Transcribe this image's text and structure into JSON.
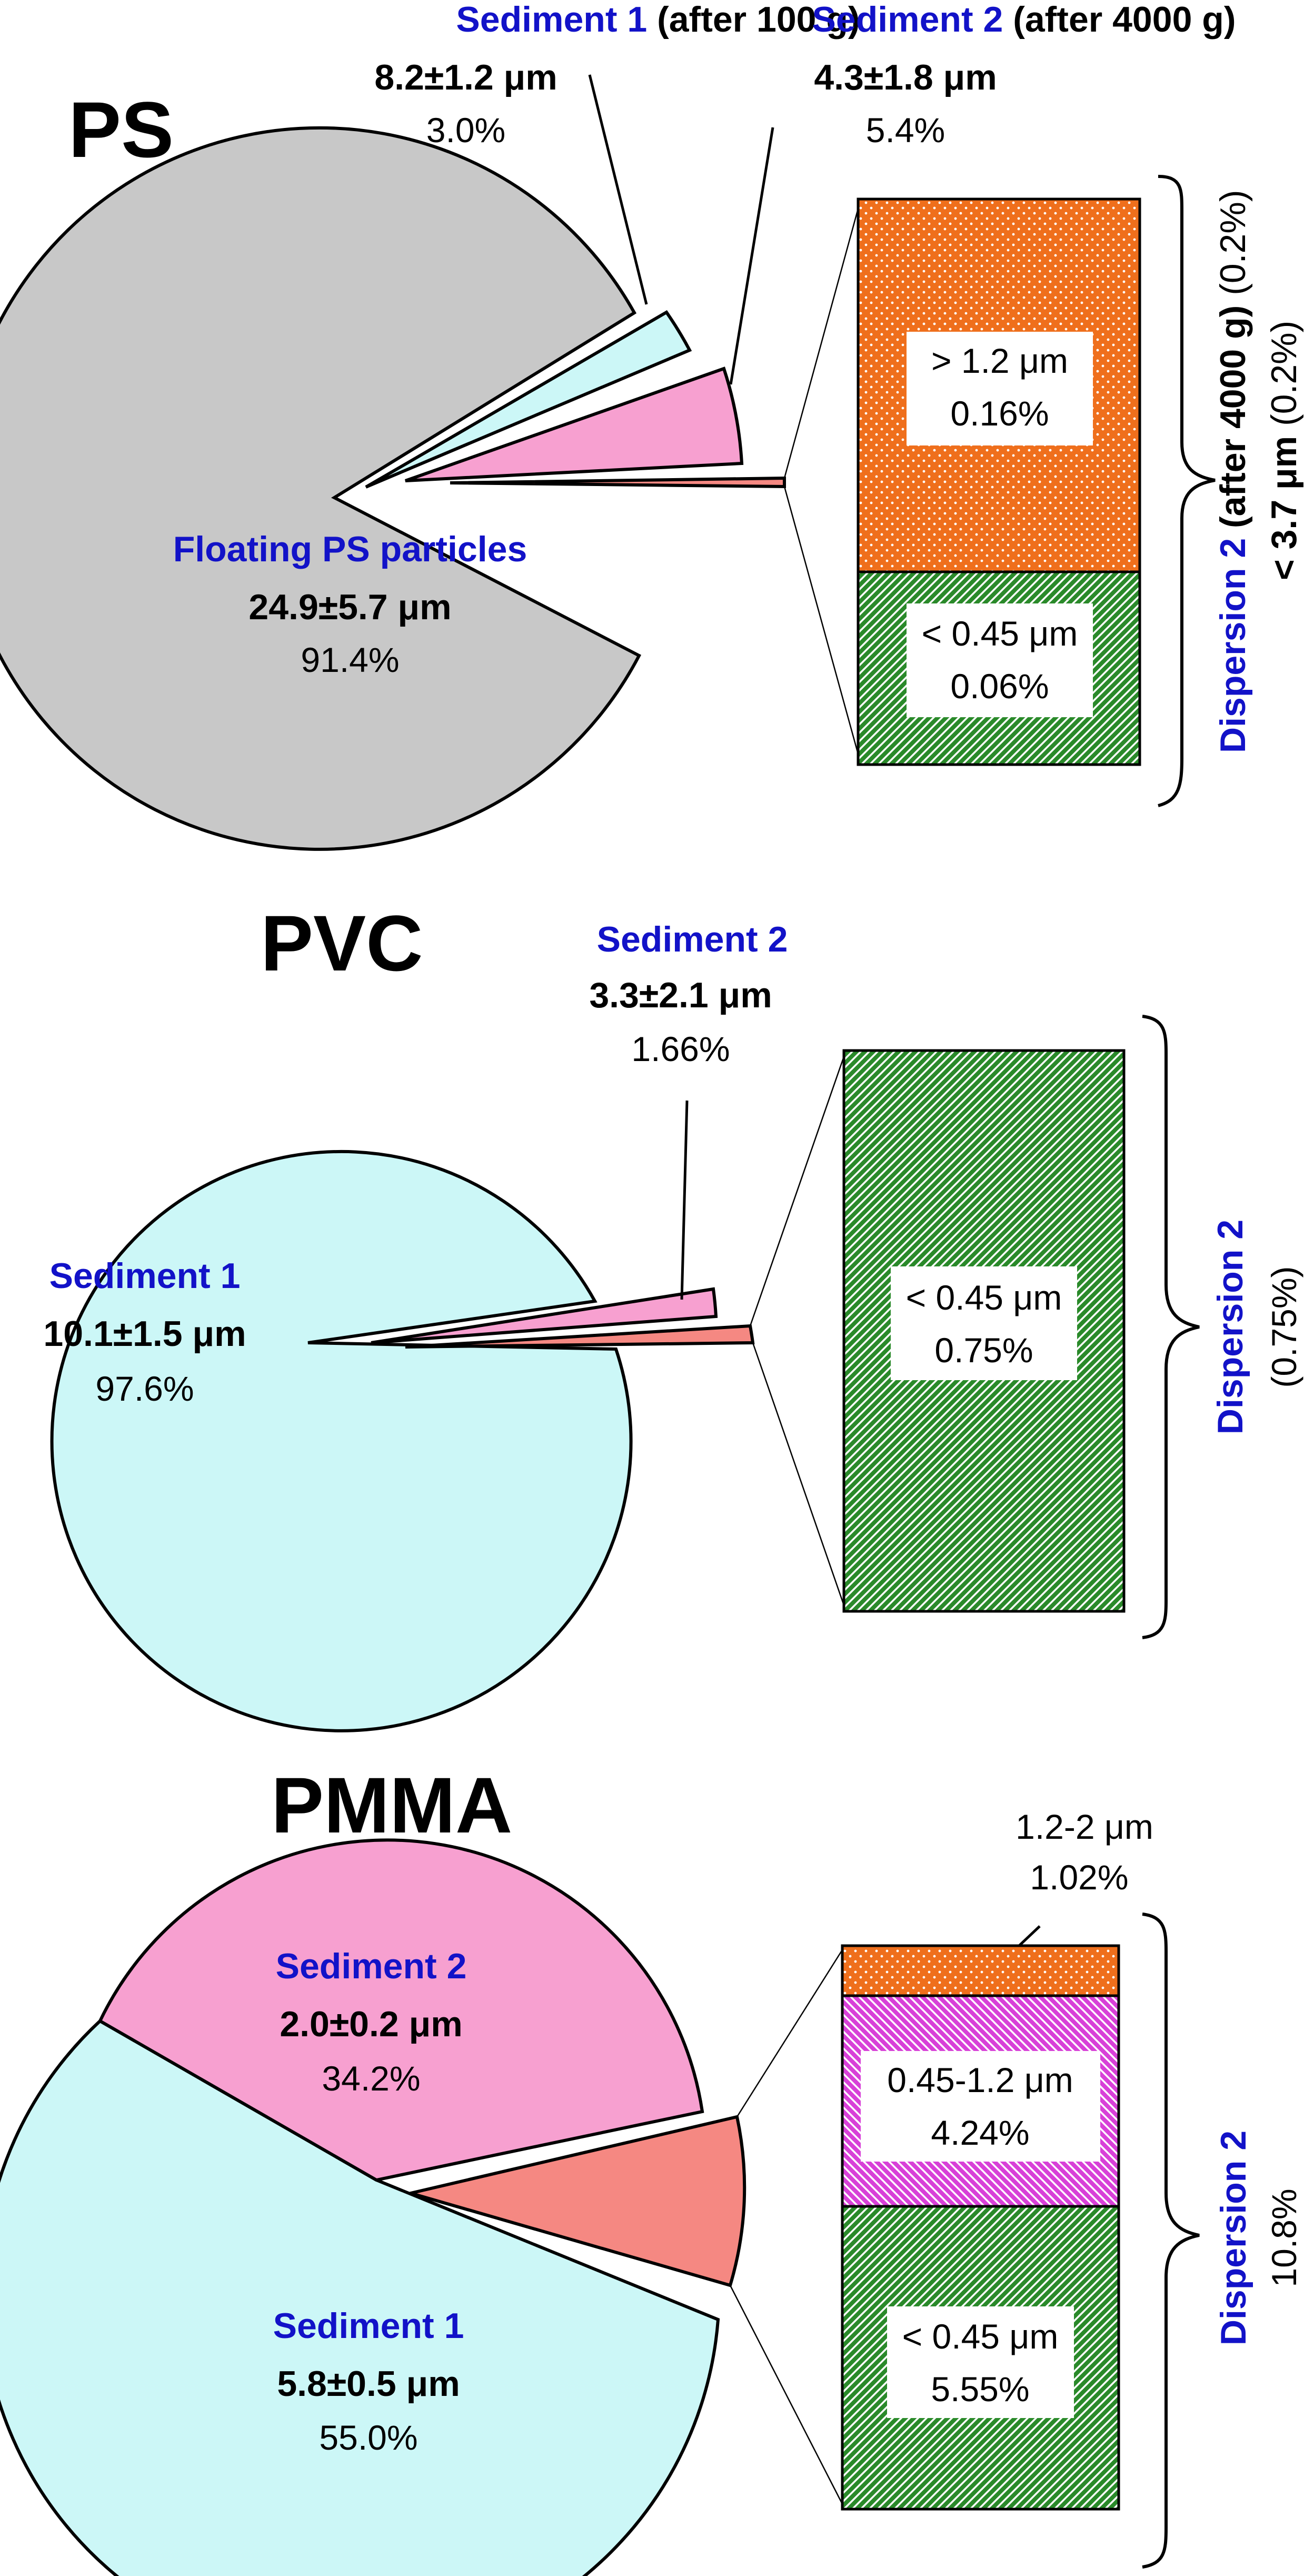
{
  "colors": {
    "floating_gray": "#c8c8c8",
    "sediment1_cyan": "#ccf7f7",
    "sediment2_pink": "#f7a0d0",
    "dispersion_salmon": "#f58882",
    "orange": "#ef6f1c",
    "green": "#2a8a2a",
    "magenta": "#d840d8",
    "label_blue": "#1212c8"
  },
  "panels": {
    "ps": {
      "heading": "PS",
      "floating": {
        "name": "Floating PS particles",
        "size": "24.9±5.7 μm",
        "pct": "91.4%"
      },
      "sed1": {
        "name": "Sediment 1",
        "note": " (after 100 g)",
        "size": "8.2±1.2 μm",
        "pct": "3.0%"
      },
      "sed2": {
        "name": "Sediment 2",
        "note": " (after 4000 g)",
        "size": "4.3±1.8 μm",
        "pct": "5.4%"
      },
      "bar": [
        {
          "label": "> 1.2 μm",
          "pct": "0.16%"
        },
        {
          "label": "< 0.45 μm",
          "pct": "0.06%"
        }
      ],
      "side_a": "Dispersion 2",
      "side_b": " (after 4000 g)",
      "side_c": " (0.2%)",
      "side_d": "< 3.7 μm",
      "side_e": " (0.2%)"
    },
    "pvc": {
      "heading": "PVC",
      "sed1": {
        "name": "Sediment 1",
        "size": "10.1±1.5 μm",
        "pct": "97.6%"
      },
      "sed2": {
        "name": "Sediment 2",
        "size": "3.3±2.1 μm",
        "pct": "1.66%"
      },
      "bar": [
        {
          "label": "< 0.45 μm",
          "pct": "0.75%"
        }
      ],
      "side_a": "Dispersion 2",
      "side_b": "(0.75%)"
    },
    "pmma": {
      "heading": "PMMA",
      "sed1": {
        "name": "Sediment 1",
        "size": "5.8±0.5 μm",
        "pct": "55.0%"
      },
      "sed2": {
        "name": "Sediment 2",
        "size": "2.0±0.2 μm",
        "pct": "34.2%"
      },
      "bar_top": {
        "label": "1.2-2 μm",
        "pct": "1.02%"
      },
      "bar": [
        {
          "label": "0.45-1.2 μm",
          "pct": "4.24%"
        },
        {
          "label": "< 0.45 μm",
          "pct": "5.55%"
        }
      ],
      "side_a": "Dispersion 2",
      "side_b": "10.8%"
    }
  },
  "chart_data": [
    {
      "type": "pie",
      "title": "PS",
      "categories": [
        "Floating PS particles",
        "Sediment 1 (after 100 g)",
        "Sediment 2 (after 4000 g)",
        "Dispersion 2 (after 4000 g)"
      ],
      "values": [
        91.4,
        3.0,
        5.4,
        0.2
      ],
      "sizes_um": [
        "24.9±5.7",
        "8.2±1.2",
        "4.3±1.8",
        "< 3.7"
      ],
      "breakdown": {
        "series": "Dispersion 2",
        "categories": [
          "> 1.2 μm",
          "< 0.45 μm"
        ],
        "values": [
          0.16,
          0.06
        ]
      }
    },
    {
      "type": "pie",
      "title": "PVC",
      "categories": [
        "Sediment 1",
        "Sediment 2",
        "Dispersion 2"
      ],
      "values": [
        97.6,
        1.66,
        0.75
      ],
      "sizes_um": [
        "10.1±1.5",
        "3.3±2.1",
        ""
      ],
      "breakdown": {
        "series": "Dispersion 2",
        "categories": [
          "< 0.45 μm"
        ],
        "values": [
          0.75
        ]
      }
    },
    {
      "type": "pie",
      "title": "PMMA",
      "categories": [
        "Sediment 1",
        "Sediment 2",
        "Dispersion 2"
      ],
      "values": [
        55.0,
        34.2,
        10.8
      ],
      "sizes_um": [
        "5.8±0.5",
        "2.0±0.2",
        ""
      ],
      "breakdown": {
        "series": "Dispersion 2",
        "categories": [
          "1.2-2 μm",
          "0.45-1.2 μm",
          "< 0.45 μm"
        ],
        "values": [
          1.02,
          4.24,
          5.55
        ]
      }
    }
  ]
}
